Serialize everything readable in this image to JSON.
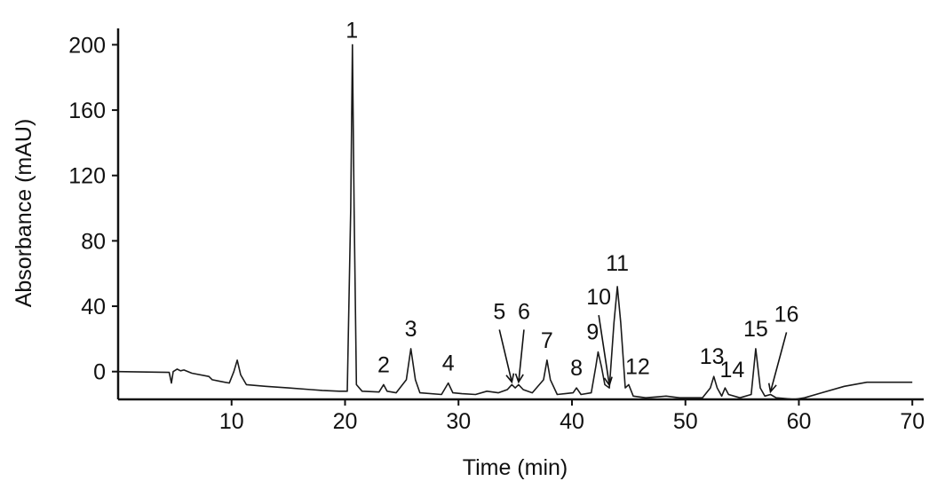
{
  "chart_data": {
    "type": "line",
    "title": "",
    "xlabel": "Time (min)",
    "ylabel": "Absorbance (mAU)",
    "xlim": [
      0,
      71
    ],
    "ylim": [
      -17,
      210
    ],
    "xticks": [
      10,
      20,
      30,
      40,
      50,
      60,
      70
    ],
    "yticks": [
      0,
      40,
      80,
      120,
      160,
      200
    ],
    "grid": false,
    "series": [
      {
        "values": [
          [
            0,
            0
          ],
          [
            4.5,
            -0.5
          ],
          [
            4.7,
            -7
          ],
          [
            4.85,
            0
          ],
          [
            5.2,
            1.5
          ],
          [
            5.5,
            0.5
          ],
          [
            5.8,
            1
          ],
          [
            6.5,
            -1
          ],
          [
            8,
            -3
          ],
          [
            8.3,
            -5
          ],
          [
            9,
            -6
          ],
          [
            9.8,
            -7
          ],
          [
            10.2,
            0
          ],
          [
            10.5,
            7
          ],
          [
            10.8,
            -2
          ],
          [
            11.3,
            -8
          ],
          [
            13,
            -9
          ],
          [
            15,
            -10
          ],
          [
            17,
            -11
          ],
          [
            18,
            -11.5
          ],
          [
            19.5,
            -12
          ],
          [
            20.2,
            -12
          ],
          [
            20.5,
            100
          ],
          [
            20.65,
            200
          ],
          [
            20.8,
            100
          ],
          [
            21,
            -8
          ],
          [
            21.5,
            -12
          ],
          [
            23,
            -12.5
          ],
          [
            23.4,
            -8
          ],
          [
            23.7,
            -12
          ],
          [
            24.5,
            -13
          ],
          [
            25.4,
            -5
          ],
          [
            25.8,
            14
          ],
          [
            26.2,
            -5
          ],
          [
            26.6,
            -13
          ],
          [
            28.5,
            -14
          ],
          [
            29.1,
            -7
          ],
          [
            29.5,
            -13
          ],
          [
            30.3,
            -13.5
          ],
          [
            31.5,
            -14
          ],
          [
            32.5,
            -12
          ],
          [
            33.5,
            -13
          ],
          [
            34.3,
            -11
          ],
          [
            34.7,
            -8
          ],
          [
            35,
            -10
          ],
          [
            35.3,
            -8
          ],
          [
            35.7,
            -11
          ],
          [
            36.5,
            -13
          ],
          [
            37.5,
            -5
          ],
          [
            37.8,
            7
          ],
          [
            38.1,
            -5
          ],
          [
            38.7,
            -14
          ],
          [
            40.1,
            -13
          ],
          [
            40.4,
            -10
          ],
          [
            40.8,
            -14
          ],
          [
            41.7,
            -13
          ],
          [
            42.1,
            3
          ],
          [
            42.3,
            12
          ],
          [
            42.6,
            3
          ],
          [
            42.9,
            -8
          ],
          [
            43.3,
            -10
          ],
          [
            43.7,
            30
          ],
          [
            44,
            52
          ],
          [
            44.3,
            30
          ],
          [
            44.7,
            -10
          ],
          [
            45,
            -8
          ],
          [
            45.4,
            -15
          ],
          [
            46.5,
            -16
          ],
          [
            47.5,
            -15.5
          ],
          [
            48.3,
            -15
          ],
          [
            49.5,
            -16
          ],
          [
            51.5,
            -16
          ],
          [
            52.2,
            -10
          ],
          [
            52.5,
            -3
          ],
          [
            52.8,
            -10
          ],
          [
            53.2,
            -15
          ],
          [
            53.5,
            -10
          ],
          [
            53.8,
            -14
          ],
          [
            54.8,
            -16
          ],
          [
            55.8,
            -14
          ],
          [
            56.2,
            14
          ],
          [
            56.6,
            -10
          ],
          [
            57,
            -15
          ],
          [
            57.5,
            -14
          ],
          [
            58,
            -16
          ],
          [
            58.8,
            -16.5
          ],
          [
            59.6,
            -17
          ],
          [
            60.5,
            -16
          ],
          [
            62,
            -13
          ],
          [
            64,
            -9
          ],
          [
            66,
            -6.5
          ],
          [
            68,
            -6.5
          ],
          [
            70,
            -6.5
          ]
        ]
      }
    ],
    "annotations": [
      {
        "label": "1",
        "x": 20.6,
        "y": 200
      },
      {
        "label": "2",
        "x": 23.4,
        "y": -8
      },
      {
        "label": "3",
        "x": 25.8,
        "y": 14
      },
      {
        "label": "4",
        "x": 29.1,
        "y": -7
      },
      {
        "label": "5",
        "x": 34.7,
        "y": -8
      },
      {
        "label": "6",
        "x": 35.3,
        "y": -8
      },
      {
        "label": "7",
        "x": 37.8,
        "y": 7
      },
      {
        "label": "8",
        "x": 40.4,
        "y": -10
      },
      {
        "label": "9",
        "x": 42.3,
        "y": 12
      },
      {
        "label": "10",
        "x": 43.3,
        "y": -10
      },
      {
        "label": "11",
        "x": 44,
        "y": 52
      },
      {
        "label": "12",
        "x": 45,
        "y": -8
      },
      {
        "label": "13",
        "x": 52.5,
        "y": -3
      },
      {
        "label": "14",
        "x": 53.5,
        "y": -10
      },
      {
        "label": "15",
        "x": 56.2,
        "y": 14
      },
      {
        "label": "16",
        "x": 57.5,
        "y": -14
      }
    ]
  }
}
